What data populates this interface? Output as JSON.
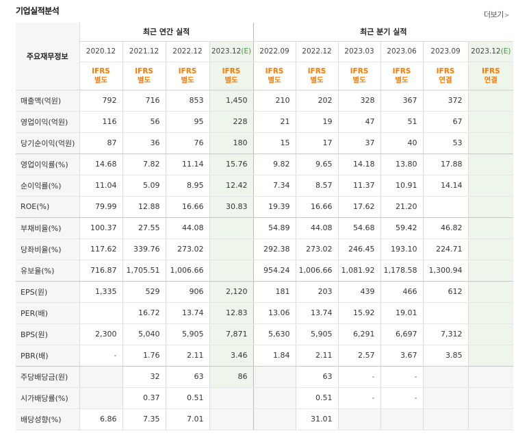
{
  "title": "기업실적분석",
  "more": "더보기",
  "corner_label": "주요재무정보",
  "groups": {
    "annual": "최근 연간 실적",
    "quarter": "최근 분기 실적"
  },
  "periods": [
    {
      "label": "2020.12",
      "est": ""
    },
    {
      "label": "2021.12",
      "est": ""
    },
    {
      "label": "2022.12",
      "est": ""
    },
    {
      "label": "2023.12",
      "est": "(E)"
    },
    {
      "label": "2022.09",
      "est": ""
    },
    {
      "label": "2022.12",
      "est": ""
    },
    {
      "label": "2023.03",
      "est": ""
    },
    {
      "label": "2023.06",
      "est": ""
    },
    {
      "label": "2023.09",
      "est": ""
    },
    {
      "label": "2023.12",
      "est": "(E)"
    }
  ],
  "ifrs": [
    {
      "l1": "IFRS",
      "l2": "별도"
    },
    {
      "l1": "IFRS",
      "l2": "별도"
    },
    {
      "l1": "IFRS",
      "l2": "별도"
    },
    {
      "l1": "IFRS",
      "l2": "별도"
    },
    {
      "l1": "IFRS",
      "l2": "별도"
    },
    {
      "l1": "IFRS",
      "l2": "별도"
    },
    {
      "l1": "IFRS",
      "l2": "별도"
    },
    {
      "l1": "IFRS",
      "l2": "별도"
    },
    {
      "l1": "IFRS",
      "l2": "연결"
    },
    {
      "l1": "IFRS",
      "l2": "연결"
    }
  ],
  "rows": [
    {
      "label": "매출액(억원)",
      "values": [
        "792",
        "716",
        "853",
        "1,450",
        "210",
        "202",
        "328",
        "367",
        "372",
        ""
      ]
    },
    {
      "label": "영업이익(억원)",
      "values": [
        "116",
        "56",
        "95",
        "228",
        "21",
        "19",
        "47",
        "51",
        "67",
        ""
      ]
    },
    {
      "label": "당기순이익(억원)",
      "values": [
        "87",
        "36",
        "76",
        "180",
        "15",
        "17",
        "37",
        "40",
        "53",
        ""
      ]
    },
    {
      "label": "영업이익률(%)",
      "values": [
        "14.68",
        "7.82",
        "11.14",
        "15.76",
        "9.82",
        "9.65",
        "14.18",
        "13.80",
        "17.88",
        ""
      ]
    },
    {
      "label": "순이익률(%)",
      "values": [
        "11.04",
        "5.09",
        "8.95",
        "12.42",
        "7.34",
        "8.57",
        "11.37",
        "10.91",
        "14.14",
        ""
      ]
    },
    {
      "label": "ROE(%)",
      "values": [
        "79.99",
        "12.88",
        "16.66",
        "30.83",
        "19.39",
        "16.66",
        "17.62",
        "21.20",
        "",
        ""
      ]
    },
    {
      "label": "부채비율(%)",
      "values": [
        "100.37",
        "27.55",
        "44.08",
        "",
        "54.89",
        "44.08",
        "54.68",
        "59.42",
        "46.82",
        ""
      ]
    },
    {
      "label": "당좌비율(%)",
      "values": [
        "117.62",
        "339.76",
        "273.02",
        "",
        "292.38",
        "273.02",
        "246.45",
        "193.10",
        "224.71",
        ""
      ]
    },
    {
      "label": "유보율(%)",
      "values": [
        "716.87",
        "1,705.51",
        "1,006.66",
        "",
        "954.24",
        "1,006.66",
        "1,081.92",
        "1,178.58",
        "1,300.94",
        ""
      ]
    },
    {
      "label": "EPS(원)",
      "values": [
        "1,335",
        "529",
        "906",
        "2,120",
        "181",
        "203",
        "439",
        "466",
        "612",
        ""
      ]
    },
    {
      "label": "PER(배)",
      "values": [
        "",
        "16.72",
        "13.74",
        "12.83",
        "13.06",
        "13.74",
        "15.92",
        "19.01",
        "",
        ""
      ]
    },
    {
      "label": "BPS(원)",
      "values": [
        "2,300",
        "5,040",
        "5,905",
        "7,871",
        "5,630",
        "5,905",
        "6,291",
        "6,697",
        "7,312",
        ""
      ]
    },
    {
      "label": "PBR(배)",
      "values": [
        "-",
        "1.76",
        "2.11",
        "3.46",
        "1.84",
        "2.11",
        "2.57",
        "3.67",
        "3.85",
        ""
      ]
    },
    {
      "label": "주당배당금(원)",
      "values": [
        "",
        "32",
        "63",
        "86",
        "",
        "63",
        "-",
        "-",
        "",
        ""
      ]
    },
    {
      "label": "시가배당률(%)",
      "values": [
        "",
        "0.37",
        "0.51",
        "",
        "",
        "0.51",
        "-",
        "-",
        "",
        ""
      ]
    },
    {
      "label": "배당성향(%)",
      "values": [
        "6.86",
        "7.35",
        "7.01",
        "",
        "",
        "31.01",
        "",
        "",
        "",
        ""
      ]
    }
  ],
  "gray_cells": [
    [
      13,
      0
    ],
    [
      13,
      4
    ],
    [
      13,
      8
    ],
    [
      13,
      9
    ],
    [
      14,
      0
    ],
    [
      14,
      3
    ],
    [
      14,
      4
    ],
    [
      14,
      8
    ],
    [
      14,
      9
    ],
    [
      15,
      3
    ],
    [
      15,
      4
    ],
    [
      15,
      6
    ],
    [
      15,
      7
    ],
    [
      15,
      8
    ],
    [
      15,
      9
    ]
  ]
}
